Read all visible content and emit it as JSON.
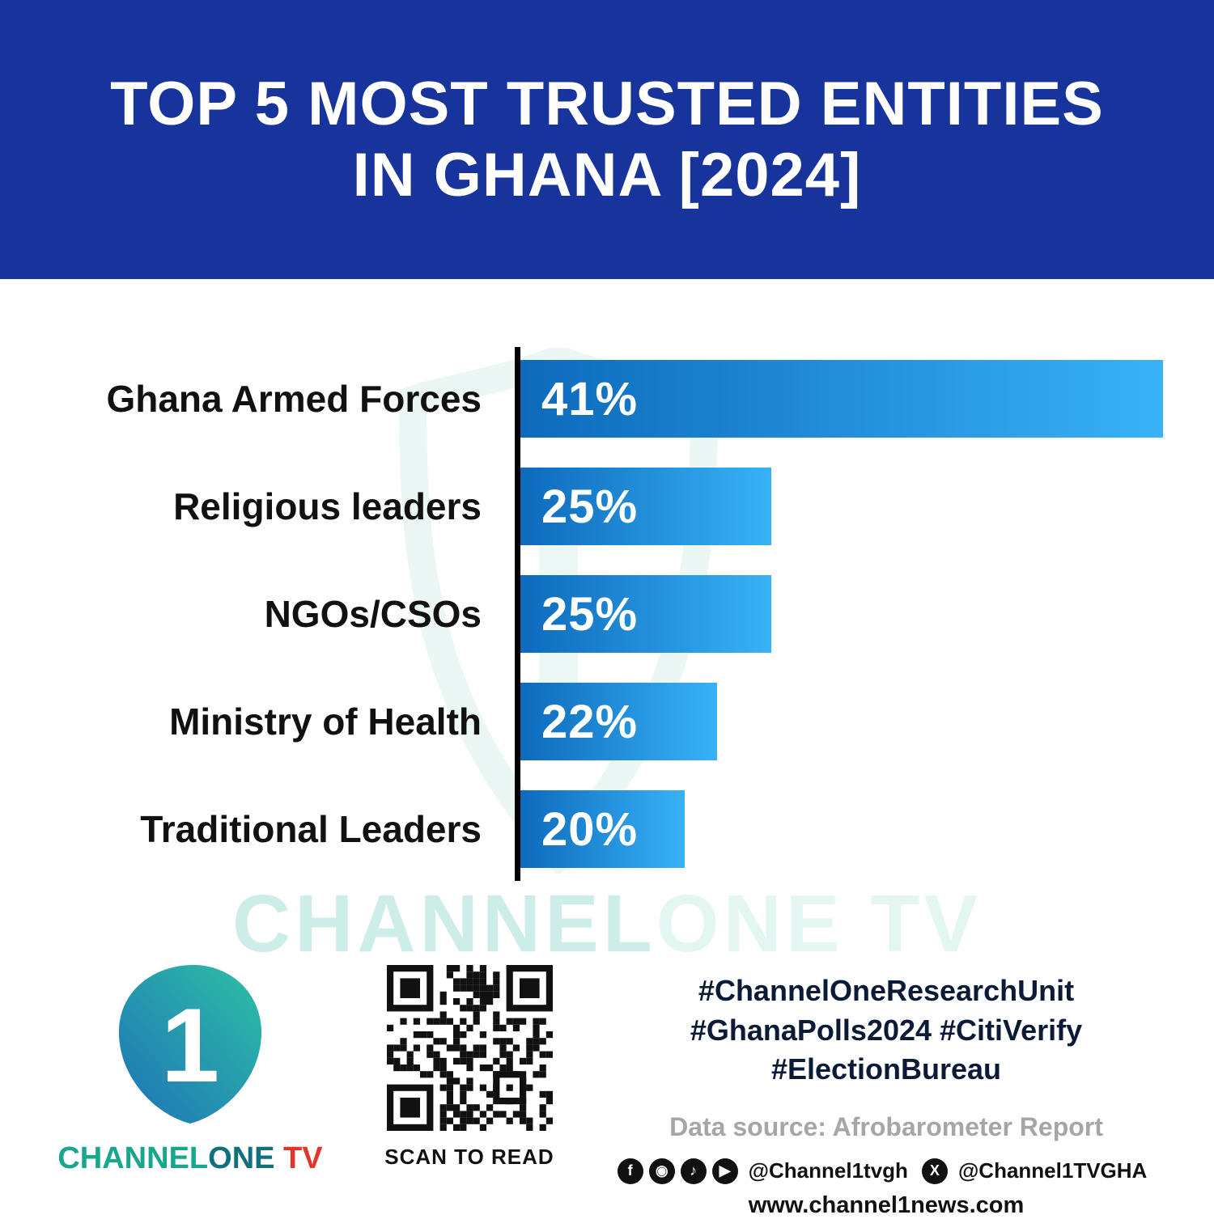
{
  "header": {
    "title_line1": "TOP 5 MOST TRUSTED ENTITIES",
    "title_line2": "IN GHANA [2024]",
    "bg_color": "#17339c",
    "text_color": "#ffffff"
  },
  "chart_data": {
    "type": "bar",
    "orientation": "horizontal",
    "title": "Top 5 Most Trusted Entities in Ghana [2024]",
    "categories": [
      "Ghana Armed Forces",
      "Religious leaders",
      "NGOs/CSOs",
      "Ministry of Health",
      "Traditional Leaders"
    ],
    "values": [
      41,
      25,
      25,
      22,
      20
    ],
    "value_suffix": "%",
    "xlim": [
      0,
      41
    ],
    "grid": false,
    "legend": false,
    "bar_color_start": "#0d6abc",
    "bar_color_end": "#38b2f7",
    "axis_color": "#000000",
    "data_source": "Afrobarometer Report"
  },
  "watermark": {
    "part1": "CHANNEL",
    "part2": "ONE TV"
  },
  "footer": {
    "brand": {
      "logo_numeral": "1",
      "channel": "CHANNEL",
      "one": "ONE",
      "tv": " TV"
    },
    "qr_caption": "SCAN TO READ",
    "hashtags_line1": "#ChannelOneResearchUnit",
    "hashtags_line2": "#GhanaPolls2024 #CitiVerify",
    "hashtags_line3": "#ElectionBureau",
    "data_source": "Data source: Afrobarometer Report",
    "social": {
      "icons": [
        {
          "name": "facebook-icon",
          "glyph": "f"
        },
        {
          "name": "instagram-icon",
          "glyph": "◉"
        },
        {
          "name": "tiktok-icon",
          "glyph": "♪"
        },
        {
          "name": "youtube-icon",
          "glyph": "▶"
        }
      ],
      "handle1": "@Channel1tvgh",
      "x_icon": {
        "name": "x-icon",
        "glyph": "X"
      },
      "handle2": "@Channel1TVGHA"
    },
    "website": "www.channel1news.com"
  }
}
